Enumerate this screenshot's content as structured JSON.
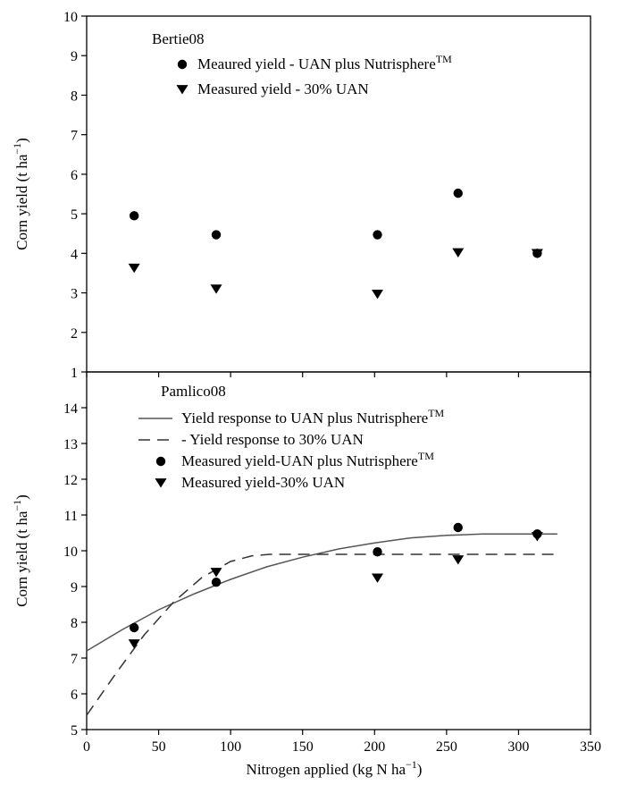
{
  "chart_data": [
    {
      "type": "scatter",
      "panel_label": "Bertie08",
      "ylabel_parts": [
        "Corn yield (t ha",
        "−1",
        ")"
      ],
      "ylim": [
        1,
        10
      ],
      "yticks": [
        1,
        2,
        3,
        4,
        5,
        6,
        7,
        8,
        9,
        10
      ],
      "xlim": [
        0,
        350
      ],
      "legend": [
        {
          "marker": "circle",
          "text": "Meaured yield - UAN plus Nutrisphere",
          "sup": "TM"
        },
        {
          "marker": "triangle",
          "text": "Measured yield - 30% UAN",
          "sup": ""
        }
      ],
      "series": [
        {
          "name": "Meaured yield - UAN plus Nutrisphere™",
          "marker": "circle",
          "x": [
            33,
            90,
            202,
            258,
            313
          ],
          "y": [
            4.95,
            4.47,
            4.47,
            5.52,
            4.0
          ]
        },
        {
          "name": "Measured yield - 30% UAN",
          "marker": "triangle",
          "x": [
            33,
            90,
            202,
            258,
            313
          ],
          "y": [
            3.63,
            3.1,
            2.97,
            4.02,
            4.0
          ]
        }
      ]
    },
    {
      "type": "scatter",
      "panel_label": "Pamlico08",
      "ylabel_parts": [
        "Corn yield (t ha",
        "−1",
        ")"
      ],
      "xlabel_parts": [
        "Nitrogen applied (kg N ha",
        "−1",
        ")"
      ],
      "ylim": [
        5,
        15
      ],
      "yticks": [
        5,
        6,
        7,
        8,
        9,
        10,
        11,
        12,
        13,
        14
      ],
      "xlim": [
        0,
        350
      ],
      "xticks": [
        0,
        50,
        100,
        150,
        200,
        250,
        300,
        350
      ],
      "legend": [
        {
          "marker": "solid-line",
          "text": "Yield response to UAN plus Nutrisphere",
          "sup": "TM"
        },
        {
          "marker": "dashed-line",
          "text": "- Yield response to 30% UAN",
          "sup": ""
        },
        {
          "marker": "circle",
          "text": "Measured yield-UAN plus Nutrisphere",
          "sup": "TM"
        },
        {
          "marker": "triangle",
          "text": "Measured yield-30% UAN",
          "sup": ""
        }
      ],
      "lines": [
        {
          "name": "Yield response to UAN plus Nutrisphere™",
          "style": "solid",
          "x": [
            0,
            25,
            50,
            75,
            100,
            125,
            150,
            175,
            200,
            225,
            250,
            275,
            300,
            327
          ],
          "y": [
            7.2,
            7.8,
            8.35,
            8.8,
            9.2,
            9.55,
            9.82,
            10.05,
            10.22,
            10.36,
            10.43,
            10.47,
            10.47,
            10.47
          ]
        },
        {
          "name": "Yield response to 30% UAN",
          "style": "dashed",
          "x": [
            0,
            20,
            40,
            60,
            80,
            100,
            115,
            127,
            140,
            200,
            260,
            327
          ],
          "y": [
            5.4,
            6.55,
            7.65,
            8.55,
            9.25,
            9.7,
            9.86,
            9.9,
            9.9,
            9.9,
            9.9,
            9.9
          ]
        }
      ],
      "series": [
        {
          "name": "Measured yield-UAN plus Nutrisphere™",
          "marker": "circle",
          "x": [
            33,
            90,
            202,
            258,
            313
          ],
          "y": [
            7.85,
            9.12,
            9.97,
            10.65,
            10.47
          ]
        },
        {
          "name": "Measured yield-30% UAN",
          "marker": "triangle",
          "x": [
            33,
            90,
            202,
            258,
            313
          ],
          "y": [
            7.4,
            9.4,
            9.24,
            9.75,
            10.4
          ]
        }
      ]
    }
  ]
}
